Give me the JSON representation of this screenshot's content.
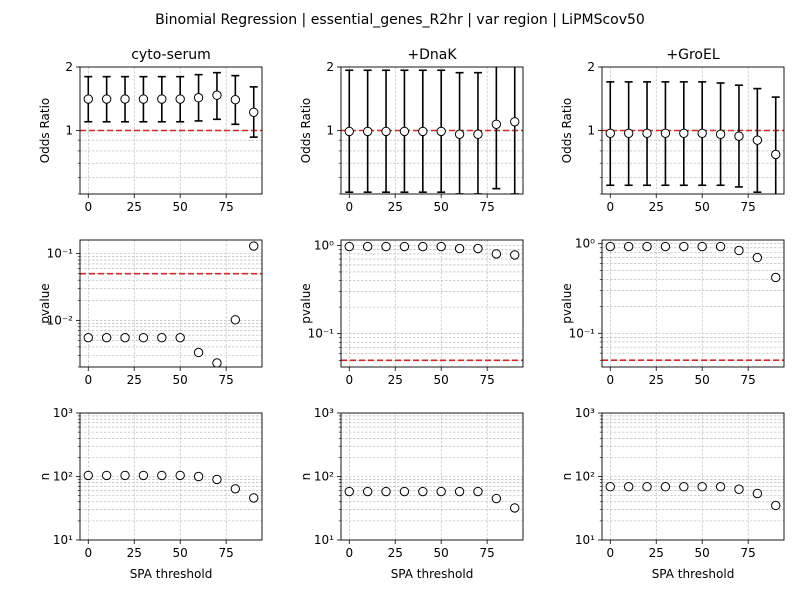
{
  "suptitle": "Binomial Regression | essential_genes_R2hr | var region | LiPMScov50",
  "colors": {
    "ref_line": "#d62728",
    "grid": "#b0b0b0",
    "marker": "#000000"
  },
  "chart_data": [
    {
      "type": "scatter",
      "title": "cyto-serum",
      "ylabel": "Odds Ratio",
      "xlabel": "",
      "yscale": "log",
      "ylim": [
        0.5,
        2
      ],
      "yticks": [
        "1",
        "2"
      ],
      "ref_line": 1,
      "x": [
        0,
        10,
        20,
        30,
        40,
        50,
        60,
        70,
        80,
        90
      ],
      "y": [
        1.41,
        1.41,
        1.41,
        1.41,
        1.41,
        1.41,
        1.43,
        1.47,
        1.4,
        1.22
      ],
      "err_low": [
        1.1,
        1.1,
        1.1,
        1.1,
        1.1,
        1.1,
        1.11,
        1.13,
        1.07,
        0.93
      ],
      "err_high": [
        1.8,
        1.8,
        1.8,
        1.8,
        1.8,
        1.8,
        1.84,
        1.88,
        1.82,
        1.61
      ],
      "xticks": [
        "0",
        "25",
        "50",
        "75"
      ]
    },
    {
      "type": "scatter",
      "title": "+DnaK",
      "ylabel": "Odds Ratio",
      "xlabel": "",
      "yscale": "log",
      "ylim": [
        0.5,
        2
      ],
      "yticks": [
        "1",
        "2"
      ],
      "ref_line": 1,
      "x": [
        0,
        10,
        20,
        30,
        40,
        50,
        60,
        70,
        80,
        90
      ],
      "y": [
        0.99,
        0.99,
        0.99,
        0.99,
        0.99,
        0.99,
        0.96,
        0.96,
        1.07,
        1.1
      ],
      "err_low": [
        0.51,
        0.51,
        0.51,
        0.51,
        0.51,
        0.51,
        0.5,
        0.5,
        0.53,
        0.5
      ],
      "err_high": [
        1.93,
        1.93,
        1.93,
        1.93,
        1.93,
        1.93,
        1.88,
        1.88,
        2.05,
        2.2
      ],
      "xticks": [
        "0",
        "25",
        "50",
        "75"
      ]
    },
    {
      "type": "scatter",
      "title": "+GroEL",
      "ylabel": "Odds Ratio",
      "xlabel": "",
      "yscale": "log",
      "ylim": [
        0.5,
        2
      ],
      "yticks": [
        "1",
        "2"
      ],
      "ref_line": 1,
      "x": [
        0,
        10,
        20,
        30,
        40,
        50,
        60,
        70,
        80,
        90
      ],
      "y": [
        0.97,
        0.97,
        0.97,
        0.97,
        0.97,
        0.97,
        0.96,
        0.94,
        0.9,
        0.77
      ],
      "err_low": [
        0.55,
        0.55,
        0.55,
        0.55,
        0.55,
        0.55,
        0.55,
        0.54,
        0.51,
        0.42
      ],
      "err_high": [
        1.7,
        1.7,
        1.7,
        1.7,
        1.7,
        1.7,
        1.68,
        1.64,
        1.58,
        1.44
      ],
      "xticks": [
        "0",
        "25",
        "50",
        "75"
      ]
    },
    {
      "type": "scatter",
      "title": "",
      "ylabel": "pvalue",
      "xlabel": "",
      "yscale": "log",
      "ylim": [
        0.002,
        0.16
      ],
      "ref_line": 0.05,
      "ytick_vals": [
        0.01,
        0.1
      ],
      "yticks": [
        "10⁻²",
        "10⁻¹"
      ],
      "x": [
        0,
        10,
        20,
        30,
        40,
        50,
        60,
        70,
        80,
        90
      ],
      "y": [
        0.0055,
        0.0055,
        0.0055,
        0.0055,
        0.0055,
        0.0055,
        0.0033,
        0.0023,
        0.0102,
        0.13
      ],
      "xticks": [
        "0",
        "25",
        "50",
        "75"
      ]
    },
    {
      "type": "scatter",
      "title": "",
      "ylabel": "pvalue",
      "xlabel": "",
      "yscale": "log",
      "ylim": [
        0.042,
        1.15
      ],
      "ref_line": 0.05,
      "ytick_vals": [
        0.1,
        1
      ],
      "yticks": [
        "10⁻¹",
        "10⁰"
      ],
      "x": [
        0,
        10,
        20,
        30,
        40,
        50,
        60,
        70,
        80,
        90
      ],
      "y": [
        0.97,
        0.97,
        0.97,
        0.97,
        0.97,
        0.97,
        0.92,
        0.92,
        0.8,
        0.78
      ],
      "xticks": [
        "0",
        "25",
        "50",
        "75"
      ]
    },
    {
      "type": "scatter",
      "title": "",
      "ylabel": "pvalue",
      "xlabel": "",
      "yscale": "log",
      "ylim": [
        0.042,
        1.1
      ],
      "ref_line": 0.05,
      "ytick_vals": [
        0.1,
        1
      ],
      "yticks": [
        "10⁻¹",
        "10⁰"
      ],
      "x": [
        0,
        10,
        20,
        30,
        40,
        50,
        60,
        70,
        80,
        90
      ],
      "y": [
        0.93,
        0.93,
        0.93,
        0.93,
        0.93,
        0.93,
        0.93,
        0.84,
        0.7,
        0.42
      ],
      "xticks": [
        "0",
        "25",
        "50",
        "75"
      ]
    },
    {
      "type": "scatter",
      "title": "",
      "ylabel": "n",
      "xlabel": "SPA threshold",
      "yscale": "log",
      "ylim": [
        10,
        1000
      ],
      "ytick_vals": [
        10,
        100,
        1000
      ],
      "yticks": [
        "10¹",
        "10²",
        "10³"
      ],
      "x": [
        0,
        10,
        20,
        30,
        40,
        50,
        60,
        70,
        80,
        90
      ],
      "y": [
        104,
        104,
        104,
        104,
        104,
        104,
        100,
        90,
        64,
        46
      ],
      "xticks": [
        "0",
        "25",
        "50",
        "75"
      ]
    },
    {
      "type": "scatter",
      "title": "",
      "ylabel": "n",
      "xlabel": "SPA threshold",
      "yscale": "log",
      "ylim": [
        10,
        1000
      ],
      "ytick_vals": [
        10,
        100,
        1000
      ],
      "yticks": [
        "10¹",
        "10²",
        "10³"
      ],
      "x": [
        0,
        10,
        20,
        30,
        40,
        50,
        60,
        70,
        80,
        90
      ],
      "y": [
        58,
        58,
        58,
        58,
        58,
        58,
        58,
        58,
        45,
        32
      ],
      "xticks": [
        "0",
        "25",
        "50",
        "75"
      ]
    },
    {
      "type": "scatter",
      "title": "",
      "ylabel": "n",
      "xlabel": "SPA threshold",
      "yscale": "log",
      "ylim": [
        10,
        1000
      ],
      "ytick_vals": [
        10,
        100,
        1000
      ],
      "yticks": [
        "10¹",
        "10²",
        "10³"
      ],
      "x": [
        0,
        10,
        20,
        30,
        40,
        50,
        60,
        70,
        80,
        90
      ],
      "y": [
        69,
        69,
        69,
        69,
        69,
        69,
        69,
        63,
        54,
        35
      ],
      "xticks": [
        "0",
        "25",
        "50",
        "75"
      ]
    }
  ]
}
